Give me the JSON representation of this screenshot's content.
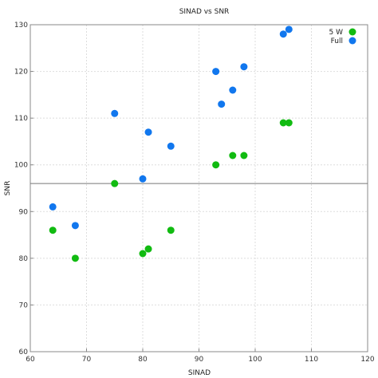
{
  "chart_data": {
    "type": "scatter",
    "title": "SINAD vs SNR",
    "xlabel": "SINAD",
    "ylabel": "SNR",
    "xlim": [
      60,
      120
    ],
    "ylim": [
      60,
      130
    ],
    "xticks": [
      60,
      70,
      80,
      90,
      100,
      110,
      120
    ],
    "yticks": [
      60,
      70,
      80,
      90,
      100,
      110,
      120,
      130
    ],
    "grid": true,
    "legend_position": "top-right",
    "reference_line": {
      "y": 96
    },
    "series": [
      {
        "name": "5 W",
        "color": "#11bb11",
        "points": [
          {
            "x": 64,
            "y": 86
          },
          {
            "x": 68,
            "y": 80
          },
          {
            "x": 75,
            "y": 96
          },
          {
            "x": 80,
            "y": 81
          },
          {
            "x": 81,
            "y": 82
          },
          {
            "x": 85,
            "y": 86
          },
          {
            "x": 93,
            "y": 100
          },
          {
            "x": 96,
            "y": 102
          },
          {
            "x": 98,
            "y": 102
          },
          {
            "x": 105,
            "y": 109
          },
          {
            "x": 106,
            "y": 109
          }
        ]
      },
      {
        "name": "Full",
        "color": "#1177ee",
        "points": [
          {
            "x": 64,
            "y": 91
          },
          {
            "x": 68,
            "y": 87
          },
          {
            "x": 75,
            "y": 111
          },
          {
            "x": 80,
            "y": 97
          },
          {
            "x": 81,
            "y": 107
          },
          {
            "x": 85,
            "y": 104
          },
          {
            "x": 93,
            "y": 120
          },
          {
            "x": 94,
            "y": 113
          },
          {
            "x": 96,
            "y": 116
          },
          {
            "x": 98,
            "y": 121
          },
          {
            "x": 105,
            "y": 128
          },
          {
            "x": 106,
            "y": 129
          }
        ]
      }
    ]
  }
}
